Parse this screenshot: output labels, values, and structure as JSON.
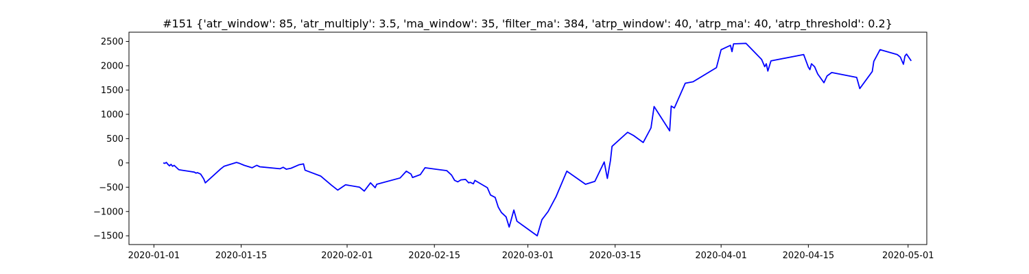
{
  "chart_data": {
    "type": "line",
    "title": "#151 {'atr_window': 85, 'atr_multiply': 3.5, 'ma_window': 35, 'filter_ma': 384, 'atrp_window': 40, 'atrp_ma': 40, 'atrp_threshold': 0.2}",
    "xlabel": "",
    "ylabel": "",
    "x_type": "date",
    "xlim": [
      "2019-12-28",
      "2020-05-04"
    ],
    "ylim": [
      -1680,
      2690
    ],
    "x_ticks": [
      "2020-01-01",
      "2020-01-15",
      "2020-02-01",
      "2020-02-15",
      "2020-03-01",
      "2020-03-15",
      "2020-04-01",
      "2020-04-15",
      "2020-05-01"
    ],
    "x_tick_labels": [
      "2020-01-01",
      "2020-01-15",
      "2020-02-01",
      "2020-02-15",
      "2020-03-01",
      "2020-03-15",
      "2020-04-01",
      "2020-04-15",
      "2020-05-01"
    ],
    "y_ticks": [
      -1500,
      -1000,
      -500,
      0,
      500,
      1000,
      1500,
      2000,
      2500
    ],
    "y_tick_labels": [
      "−1500",
      "−1000",
      "−500",
      "0",
      "500",
      "1000",
      "1500",
      "2000",
      "2500"
    ],
    "grid": false,
    "series": [
      {
        "color": "#0000ff",
        "points": [
          [
            "2020-01-02 12:00",
            0
          ],
          [
            "2020-01-02 18:00",
            -10
          ],
          [
            "2020-01-03 00:00",
            10
          ],
          [
            "2020-01-03 06:00",
            -30
          ],
          [
            "2020-01-03 12:00",
            -60
          ],
          [
            "2020-01-03 18:00",
            -30
          ],
          [
            "2020-01-04 00:00",
            -70
          ],
          [
            "2020-01-04 06:00",
            -50
          ],
          [
            "2020-01-04 12:00",
            -80
          ],
          [
            "2020-01-04 18:00",
            -110
          ],
          [
            "2020-01-05 00:00",
            -140
          ],
          [
            "2020-01-05 12:00",
            -150
          ],
          [
            "2020-01-06 12:00",
            -170
          ],
          [
            "2020-01-07 12:00",
            -190
          ],
          [
            "2020-01-07 18:00",
            -210
          ],
          [
            "2020-01-08 00:00",
            -200
          ],
          [
            "2020-01-08 12:00",
            -230
          ],
          [
            "2020-01-09 00:00",
            -330
          ],
          [
            "2020-01-09 06:00",
            -410
          ],
          [
            "2020-01-11 18:00",
            -120
          ],
          [
            "2020-01-12 06:00",
            -70
          ],
          [
            "2020-01-14 06:00",
            10
          ],
          [
            "2020-01-14 18:00",
            -10
          ],
          [
            "2020-01-15 12:00",
            -50
          ],
          [
            "2020-01-16 18:00",
            -100
          ],
          [
            "2020-01-17 12:00",
            -50
          ],
          [
            "2020-01-18 00:00",
            -80
          ],
          [
            "2020-01-21 06:00",
            -120
          ],
          [
            "2020-01-21 18:00",
            -90
          ],
          [
            "2020-01-22 06:00",
            -130
          ],
          [
            "2020-01-23 00:00",
            -110
          ],
          [
            "2020-01-24 06:00",
            -40
          ],
          [
            "2020-01-25 00:00",
            -20
          ],
          [
            "2020-01-25 06:00",
            -150
          ],
          [
            "2020-01-27 18:00",
            -270
          ],
          [
            "2020-01-29 12:00",
            -460
          ],
          [
            "2020-01-30 12:00",
            -560
          ],
          [
            "2020-01-31 18:00",
            -450
          ],
          [
            "2020-02-03 00:00",
            -500
          ],
          [
            "2020-02-03 18:00",
            -580
          ],
          [
            "2020-02-04 18:00",
            -410
          ],
          [
            "2020-02-05 12:00",
            -510
          ],
          [
            "2020-02-05 18:00",
            -440
          ],
          [
            "2020-02-09 12:00",
            -310
          ],
          [
            "2020-02-10 12:00",
            -170
          ],
          [
            "2020-02-11 06:00",
            -230
          ],
          [
            "2020-02-11 12:00",
            -300
          ],
          [
            "2020-02-12 18:00",
            -240
          ],
          [
            "2020-02-13 12:00",
            -100
          ],
          [
            "2020-02-17 00:00",
            -160
          ],
          [
            "2020-02-17 18:00",
            -250
          ],
          [
            "2020-02-18 06:00",
            -360
          ],
          [
            "2020-02-18 18:00",
            -390
          ],
          [
            "2020-02-19 06:00",
            -350
          ],
          [
            "2020-02-20 00:00",
            -340
          ],
          [
            "2020-02-20 12:00",
            -410
          ],
          [
            "2020-02-20 18:00",
            -400
          ],
          [
            "2020-02-21 06:00",
            -430
          ],
          [
            "2020-02-21 12:00",
            -360
          ],
          [
            "2020-02-23 12:00",
            -510
          ],
          [
            "2020-02-24 00:00",
            -660
          ],
          [
            "2020-02-24 18:00",
            -710
          ],
          [
            "2020-02-25 06:00",
            -910
          ],
          [
            "2020-02-25 18:00",
            -1020
          ],
          [
            "2020-02-26 12:00",
            -1110
          ],
          [
            "2020-02-27 00:00",
            -1320
          ],
          [
            "2020-02-27 18:00",
            -970
          ],
          [
            "2020-02-28 06:00",
            -1200
          ],
          [
            "2020-03-02 12:00",
            -1500
          ],
          [
            "2020-03-03 06:00",
            -1170
          ],
          [
            "2020-03-04 06:00",
            -1000
          ],
          [
            "2020-03-05 12:00",
            -700
          ],
          [
            "2020-03-07 06:00",
            -170
          ],
          [
            "2020-03-10 06:00",
            -440
          ],
          [
            "2020-03-11 18:00",
            -380
          ],
          [
            "2020-03-13 06:00",
            20
          ],
          [
            "2020-03-13 18:00",
            -320
          ],
          [
            "2020-03-14 06:00",
            50
          ],
          [
            "2020-03-14 12:00",
            340
          ],
          [
            "2020-03-17 00:00",
            630
          ],
          [
            "2020-03-18 00:00",
            560
          ],
          [
            "2020-03-19 12:00",
            420
          ],
          [
            "2020-03-20 18:00",
            720
          ],
          [
            "2020-03-21 06:00",
            1160
          ],
          [
            "2020-03-23 18:00",
            660
          ],
          [
            "2020-03-24 00:00",
            1170
          ],
          [
            "2020-03-24 12:00",
            1130
          ],
          [
            "2020-03-26 06:00",
            1640
          ],
          [
            "2020-03-27 12:00",
            1670
          ],
          [
            "2020-03-31 06:00",
            1960
          ],
          [
            "2020-04-01 00:00",
            2330
          ],
          [
            "2020-04-02 12:00",
            2420
          ],
          [
            "2020-04-02 18:00",
            2290
          ],
          [
            "2020-04-03 00:00",
            2450
          ],
          [
            "2020-04-05 00:00",
            2460
          ],
          [
            "2020-04-07 12:00",
            2130
          ],
          [
            "2020-04-08 00:00",
            1980
          ],
          [
            "2020-04-08 06:00",
            2040
          ],
          [
            "2020-04-08 12:00",
            1890
          ],
          [
            "2020-04-09 00:00",
            2100
          ],
          [
            "2020-04-14 06:00",
            2230
          ],
          [
            "2020-04-15 00:00",
            1970
          ],
          [
            "2020-04-15 06:00",
            1920
          ],
          [
            "2020-04-15 12:00",
            2040
          ],
          [
            "2020-04-16 00:00",
            1980
          ],
          [
            "2020-04-16 12:00",
            1830
          ],
          [
            "2020-04-17 12:00",
            1650
          ],
          [
            "2020-04-18 00:00",
            1790
          ],
          [
            "2020-04-18 18:00",
            1860
          ],
          [
            "2020-04-22 18:00",
            1760
          ],
          [
            "2020-04-23 06:00",
            1530
          ],
          [
            "2020-04-25 06:00",
            1880
          ],
          [
            "2020-04-25 12:00",
            2090
          ],
          [
            "2020-04-26 12:00",
            2330
          ],
          [
            "2020-04-29 06:00",
            2230
          ],
          [
            "2020-04-29 18:00",
            2180
          ],
          [
            "2020-04-30 06:00",
            2030
          ],
          [
            "2020-04-30 12:00",
            2200
          ],
          [
            "2020-04-30 18:00",
            2240
          ],
          [
            "2020-05-01 12:00",
            2100
          ]
        ]
      }
    ]
  }
}
